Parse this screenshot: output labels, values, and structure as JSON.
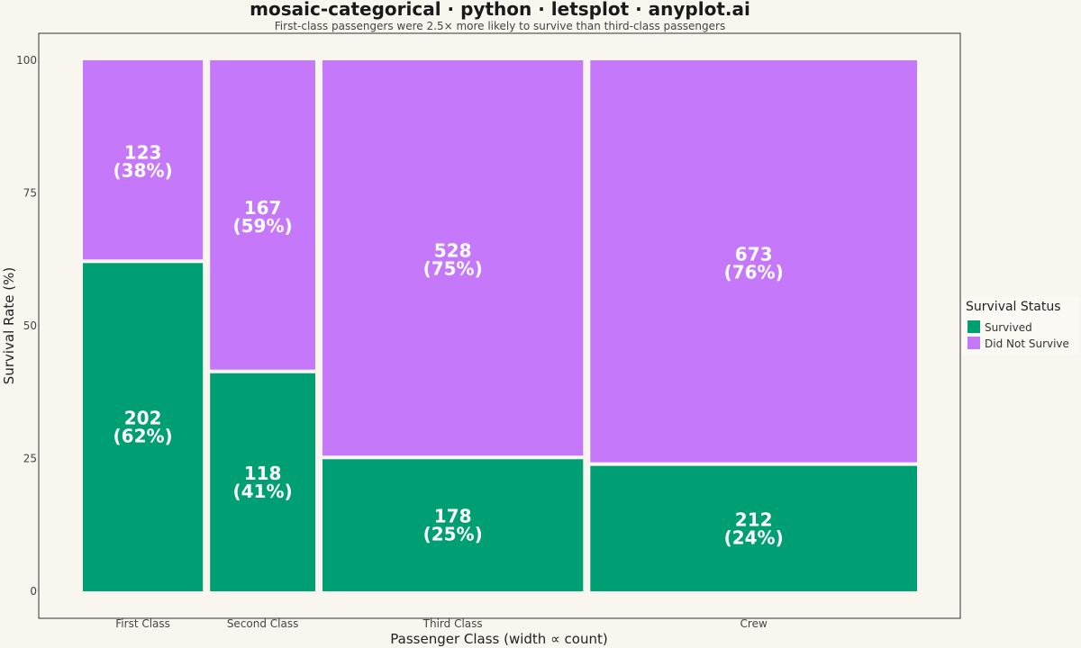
{
  "chart_data": {
    "type": "mosaic",
    "title": "mosaic-categorical · python · letsplot · anyplot.ai",
    "subtitle": "First-class passengers were 2.5× more likely to survive than third-class passengers",
    "xlabel": "Passenger Class  (width ∝ count)",
    "ylabel": "Survival Rate (%)",
    "ylim": [
      0,
      100
    ],
    "yticks": [
      0,
      25,
      50,
      75,
      100
    ],
    "legend": {
      "title": "Survival Status",
      "position": "right",
      "entries": [
        {
          "label": "Survived",
          "color": "#009e73"
        },
        {
          "label": "Did Not Survive",
          "color": "#c678fb"
        }
      ]
    },
    "categories": [
      {
        "name": "First Class",
        "survived": 202,
        "survived_pct": 62,
        "died": 123,
        "died_pct": 38
      },
      {
        "name": "Second Class",
        "survived": 118,
        "survived_pct": 41,
        "died": 167,
        "died_pct": 59
      },
      {
        "name": "Third Class",
        "survived": 178,
        "survived_pct": 25,
        "died": 528,
        "died_pct": 75
      },
      {
        "name": "Crew",
        "survived": 212,
        "survived_pct": 24,
        "died": 673,
        "died_pct": 76
      }
    ],
    "colors": {
      "survived": "#009e73",
      "died": "#c678fb",
      "background": "#f9f6f0",
      "frame": "#333333"
    }
  }
}
